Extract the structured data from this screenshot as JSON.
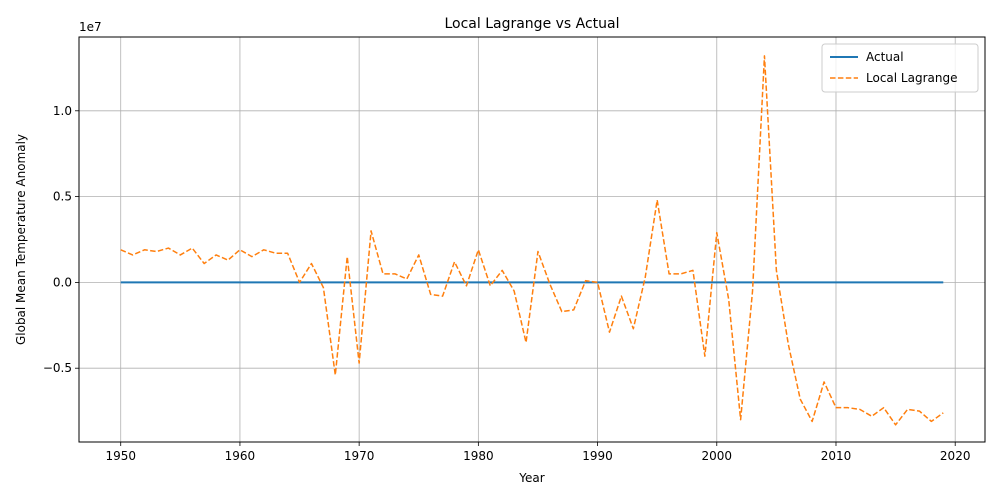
{
  "chart_data": {
    "type": "line",
    "title": "Local Lagrange vs Actual",
    "xlabel": "Year",
    "ylabel": "Global Mean Temperature Anomaly",
    "y_offset_text": "1e7",
    "xlim": [
      1946.5,
      2022.5
    ],
    "ylim": [
      -9300000,
      14300000
    ],
    "x_ticks": [
      1950,
      1960,
      1970,
      1980,
      1990,
      2000,
      2010,
      2020
    ],
    "x_tick_labels": [
      "1950",
      "1960",
      "1970",
      "1980",
      "1990",
      "2000",
      "2010",
      "2020"
    ],
    "y_ticks": [
      -5000000,
      0,
      5000000,
      10000000
    ],
    "y_tick_labels": [
      "−0.5",
      "0.0",
      "0.5",
      "1.0"
    ],
    "grid": true,
    "legend_position": "upper-right",
    "series": [
      {
        "name": "Actual",
        "color": "#1f77b4",
        "style": "solid",
        "x": [
          1950,
          2019
        ],
        "y": [
          0,
          0
        ]
      },
      {
        "name": "Local Lagrange",
        "color": "#ff7f0e",
        "style": "dashed",
        "x": [
          1950,
          1951,
          1952,
          1953,
          1954,
          1955,
          1956,
          1957,
          1958,
          1959,
          1960,
          1961,
          1962,
          1963,
          1964,
          1965,
          1966,
          1967,
          1968,
          1969,
          1970,
          1971,
          1972,
          1973,
          1974,
          1975,
          1976,
          1977,
          1978,
          1979,
          1980,
          1981,
          1982,
          1983,
          1984,
          1985,
          1986,
          1987,
          1988,
          1989,
          1990,
          1991,
          1992,
          1993,
          1994,
          1995,
          1996,
          1997,
          1998,
          1999,
          2000,
          2001,
          2002,
          2003,
          2004,
          2005,
          2006,
          2007,
          2008,
          2009,
          2010,
          2011,
          2012,
          2013,
          2014,
          2015,
          2016,
          2017,
          2018,
          2019
        ],
        "y": [
          1900000,
          1600000,
          1900000,
          1800000,
          2000000,
          1600000,
          2000000,
          1100000,
          1600000,
          1300000,
          1900000,
          1500000,
          1900000,
          1700000,
          1700000,
          0,
          1100000,
          -300000,
          -5400000,
          1500000,
          -4700000,
          3000000,
          500000,
          500000,
          200000,
          1600000,
          -700000,
          -800000,
          1200000,
          -200000,
          1900000,
          -200000,
          700000,
          -500000,
          -3500000,
          1800000,
          -100000,
          -1700000,
          -1600000,
          100000,
          0,
          -2900000,
          -800000,
          -2700000,
          300000,
          4800000,
          500000,
          500000,
          700000,
          -4300000,
          2900000,
          -1000000,
          -8000000,
          -500000,
          13200000,
          700000,
          -3600000,
          -6800000,
          -8100000,
          -5800000,
          -7300000,
          -7300000,
          -7400000,
          -7800000,
          -7300000,
          -8300000,
          -7400000,
          -7500000,
          -8100000,
          -7600000
        ]
      }
    ]
  }
}
